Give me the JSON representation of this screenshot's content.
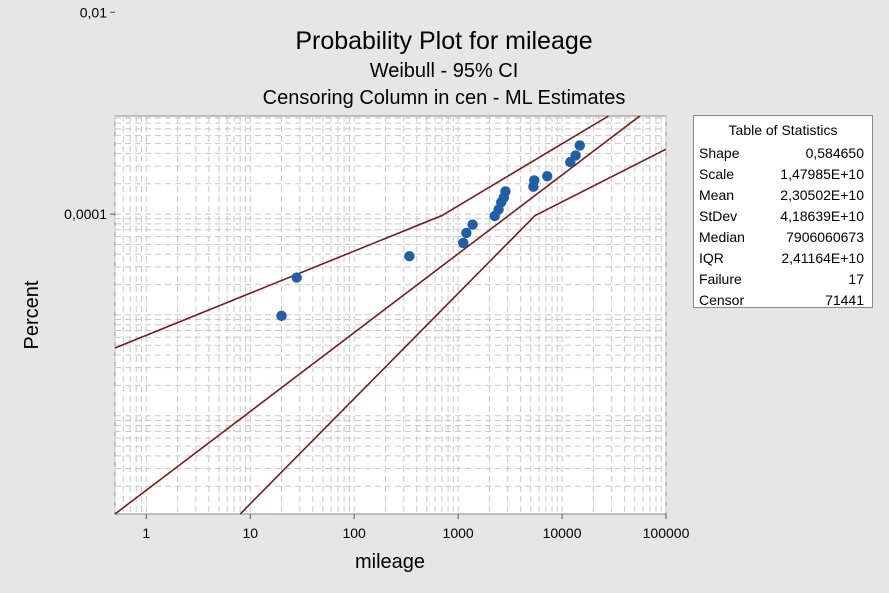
{
  "chart_data": {
    "type": "scatter",
    "title": "Probability Plot for mileage",
    "subtitle1": "Weibull - 95% CI",
    "subtitle2": "Censoring Column in cen - ML Estimates",
    "xlabel": "mileage",
    "ylabel": "Percent",
    "x_scale": "log",
    "y_scale": "weibull",
    "xlim": [
      0.5,
      100000
    ],
    "ylim_percent": [
      1.06e-05,
      0.094
    ],
    "grid": true,
    "x_tick_labels": [
      "1",
      "10",
      "100",
      "1000",
      "10000",
      "100000"
    ],
    "x_ticks": [
      1,
      10,
      100,
      1000,
      10000,
      100000
    ],
    "y_tick_labels": [
      "0,01",
      "0,0001"
    ],
    "y_ticks": [
      0.01,
      0.0001
    ],
    "series": [
      {
        "type": "scatter",
        "points": [
          {
            "x": 20,
            "y": 0.00098
          },
          {
            "x": 28,
            "y": 0.00235
          },
          {
            "x": 340,
            "y": 0.00383
          },
          {
            "x": 1120,
            "y": 0.00518
          },
          {
            "x": 1200,
            "y": 0.0065
          },
          {
            "x": 1380,
            "y": 0.00787
          },
          {
            "x": 2250,
            "y": 0.00958
          },
          {
            "x": 2450,
            "y": 0.0111
          },
          {
            "x": 2600,
            "y": 0.0131
          },
          {
            "x": 2750,
            "y": 0.0146
          },
          {
            "x": 2850,
            "y": 0.0168
          },
          {
            "x": 5300,
            "y": 0.0187
          },
          {
            "x": 5400,
            "y": 0.0216
          },
          {
            "x": 7200,
            "y": 0.0238
          },
          {
            "x": 12000,
            "y": 0.0328
          },
          {
            "x": 13500,
            "y": 0.0382
          },
          {
            "x": 14800,
            "y": 0.048
          }
        ]
      },
      {
        "type": "line",
        "role": "fit",
        "points": [
          {
            "x": 0.5,
            "y": 1.06e-05
          },
          {
            "x": 56000,
            "y": 0.094
          }
        ]
      },
      {
        "type": "line",
        "role": "upper-ci",
        "points": [
          {
            "x": 0.5,
            "y": 0.00047
          },
          {
            "x": 700,
            "y": 0.0097
          },
          {
            "x": 28000,
            "y": 0.094
          }
        ]
      },
      {
        "type": "line",
        "role": "lower-ci",
        "points": [
          {
            "x": 8,
            "y": 1.06e-05
          },
          {
            "x": 5500,
            "y": 0.0097
          },
          {
            "x": 100000,
            "y": 0.044
          }
        ]
      }
    ],
    "colors": {
      "points": "#1f5fa8",
      "fit_line": "#7a1a1a",
      "ci_lines": "#7a1a1a",
      "plot_bg": "#ffffff",
      "outer_bg": "#e6e6e6",
      "grid": "#c8c8c8"
    }
  },
  "stats_table": {
    "title": "Table of Statistics",
    "rows": [
      {
        "label": "Shape",
        "value": "0,584650"
      },
      {
        "label": "Scale",
        "value": "1,47985E+10"
      },
      {
        "label": "Mean",
        "value": "2,30502E+10"
      },
      {
        "label": "StDev",
        "value": "4,18639E+10"
      },
      {
        "label": "Median",
        "value": "7906060673"
      },
      {
        "label": "IQR",
        "value": "2,41164E+10"
      },
      {
        "label": "Failure",
        "value": "17"
      },
      {
        "label": "Censor",
        "value": "71441"
      }
    ]
  }
}
